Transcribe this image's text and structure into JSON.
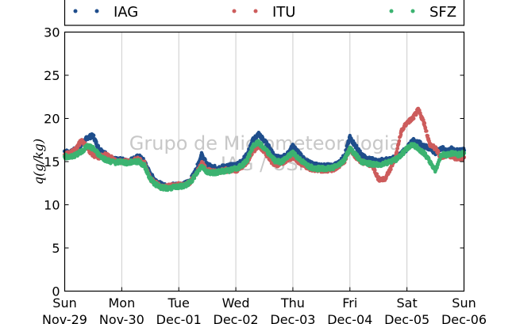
{
  "chart_data": {
    "type": "scatter",
    "title": "",
    "ylabel": "q(g/kg)",
    "xlabel": "",
    "ylim": [
      0,
      30
    ],
    "yticks": [
      0,
      5,
      10,
      15,
      20,
      25,
      30
    ],
    "xlim": [
      "2015-11-29 00:00",
      "2015-12-06 00:00"
    ],
    "xticks": [
      {
        "day": "Sun",
        "date": "Nov-29"
      },
      {
        "day": "Mon",
        "date": "Nov-30"
      },
      {
        "day": "Tue",
        "date": "Dec-01"
      },
      {
        "day": "Wed",
        "date": "Dec-02"
      },
      {
        "day": "Thu",
        "date": "Dec-03"
      },
      {
        "day": "Fri",
        "date": "Dec-04"
      },
      {
        "day": "Sat",
        "date": "Dec-05"
      },
      {
        "day": "Sun",
        "date": "Dec-06"
      }
    ],
    "grid": "vertical",
    "legend_position": "top",
    "watermark": [
      "Grupo de Micrometeorologia",
      "IAG / USP"
    ],
    "series": [
      {
        "name": "IAG",
        "color": "#1f4e8c",
        "x": [
          0,
          0.1,
          0.2,
          0.3,
          0.4,
          0.5,
          0.55,
          0.6,
          0.7,
          0.8,
          0.9,
          1.0,
          1.1,
          1.2,
          1.3,
          1.4,
          1.5,
          1.6,
          1.7,
          1.8,
          1.9,
          2.0,
          2.1,
          2.2,
          2.3,
          2.4,
          2.5,
          2.6,
          2.7,
          2.8,
          2.9,
          3.0,
          3.1,
          3.2,
          3.3,
          3.4,
          3.5,
          3.6,
          3.7,
          3.8,
          3.9,
          4.0,
          4.1,
          4.2,
          4.3,
          4.4,
          4.5,
          4.6,
          4.7,
          4.8,
          4.9,
          5.0,
          5.1,
          5.2,
          5.3,
          5.4,
          5.5,
          5.6,
          5.7,
          5.8,
          5.9,
          6.0,
          6.1,
          6.2,
          6.3,
          6.4,
          6.5,
          6.6,
          6.7,
          6.8,
          6.9,
          7.0
        ],
        "y": [
          16.2,
          16.0,
          16.5,
          17.0,
          17.8,
          18.0,
          17.2,
          16.5,
          16.0,
          15.3,
          15.2,
          15.2,
          15.0,
          15.3,
          15.6,
          15.0,
          13.5,
          12.8,
          12.3,
          12.1,
          12.3,
          12.3,
          12.4,
          12.8,
          14.0,
          15.8,
          14.6,
          14.3,
          14.3,
          14.4,
          14.5,
          14.6,
          15.0,
          15.8,
          17.5,
          18.2,
          17.4,
          16.5,
          15.5,
          15.4,
          15.8,
          16.8,
          16.0,
          15.2,
          14.8,
          14.6,
          14.5,
          14.5,
          14.5,
          14.8,
          15.6,
          17.8,
          16.8,
          15.8,
          15.3,
          15.2,
          15.0,
          15.2,
          15.2,
          15.5,
          16.0,
          16.5,
          17.5,
          17.2,
          16.8,
          16.5,
          16.0,
          16.6,
          16.2,
          16.5,
          16.2,
          16.3
        ]
      },
      {
        "name": "ITU",
        "color": "#cd5c5c",
        "x": [
          0,
          0.1,
          0.2,
          0.3,
          0.4,
          0.5,
          0.55,
          0.6,
          0.7,
          0.8,
          0.9,
          1.0,
          1.1,
          1.2,
          1.3,
          1.4,
          1.5,
          1.6,
          1.7,
          1.8,
          1.9,
          2.0,
          2.1,
          2.2,
          2.3,
          2.4,
          2.5,
          2.6,
          2.7,
          2.8,
          2.9,
          3.0,
          3.1,
          3.2,
          3.3,
          3.4,
          3.5,
          3.6,
          3.7,
          3.8,
          3.9,
          4.0,
          4.1,
          4.2,
          4.3,
          4.4,
          4.5,
          4.6,
          4.7,
          4.8,
          4.9,
          5.0,
          5.1,
          5.2,
          5.3,
          5.4,
          5.5,
          5.6,
          5.7,
          5.8,
          5.9,
          6.0,
          6.1,
          6.2,
          6.3,
          6.4,
          6.5,
          6.6,
          6.7,
          6.8,
          6.9,
          7.0
        ],
        "y": [
          15.8,
          16.0,
          16.5,
          17.5,
          16.5,
          15.8,
          15.6,
          15.5,
          15.8,
          15.5,
          15.0,
          15.0,
          15.0,
          15.1,
          15.3,
          14.8,
          13.0,
          12.5,
          12.0,
          12.1,
          12.2,
          12.3,
          12.3,
          12.6,
          13.5,
          14.8,
          14.0,
          13.8,
          13.8,
          14.0,
          14.0,
          14.0,
          14.3,
          15.0,
          16.2,
          16.8,
          16.2,
          15.2,
          14.6,
          14.8,
          15.2,
          15.5,
          15.0,
          14.5,
          14.2,
          14.1,
          14.0,
          14.0,
          14.1,
          14.5,
          15.0,
          16.5,
          15.6,
          15.0,
          14.8,
          14.5,
          13.0,
          12.9,
          14.0,
          15.5,
          18.5,
          19.5,
          20.0,
          21.0,
          19.5,
          17.0,
          16.5,
          15.5,
          15.8,
          15.5,
          15.4,
          15.5
        ]
      },
      {
        "name": "SFZ",
        "color": "#3cb371",
        "x": [
          0,
          0.1,
          0.2,
          0.3,
          0.4,
          0.5,
          0.55,
          0.6,
          0.7,
          0.8,
          0.9,
          1.0,
          1.1,
          1.2,
          1.3,
          1.4,
          1.5,
          1.6,
          1.7,
          1.8,
          1.9,
          2.0,
          2.1,
          2.2,
          2.3,
          2.4,
          2.5,
          2.6,
          2.7,
          2.8,
          2.9,
          3.0,
          3.1,
          3.2,
          3.3,
          3.4,
          3.5,
          3.6,
          3.7,
          3.8,
          3.9,
          4.0,
          4.1,
          4.2,
          4.3,
          4.4,
          4.5,
          4.6,
          4.7,
          4.8,
          4.9,
          5.0,
          5.1,
          5.2,
          5.3,
          5.4,
          5.5,
          5.6,
          5.7,
          5.8,
          5.9,
          6.0,
          6.1,
          6.2,
          6.3,
          6.4,
          6.5,
          6.6,
          6.7,
          6.8,
          6.9,
          7.0
        ],
        "y": [
          15.6,
          15.5,
          15.8,
          16.2,
          16.8,
          16.5,
          16.2,
          15.8,
          15.3,
          15.0,
          14.9,
          15.0,
          14.8,
          15.0,
          15.0,
          14.5,
          13.0,
          12.3,
          12.0,
          11.9,
          12.0,
          12.1,
          12.2,
          12.6,
          13.5,
          14.5,
          13.8,
          13.7,
          13.8,
          13.9,
          14.0,
          14.2,
          14.5,
          15.2,
          16.8,
          17.2,
          16.5,
          15.8,
          15.0,
          15.0,
          15.5,
          16.0,
          15.4,
          14.8,
          14.4,
          14.2,
          14.2,
          14.2,
          14.3,
          14.6,
          15.2,
          16.5,
          15.8,
          15.0,
          14.8,
          14.7,
          14.6,
          14.8,
          15.0,
          15.2,
          15.8,
          16.5,
          17.0,
          16.5,
          16.0,
          15.0,
          14.0,
          15.8,
          15.8,
          16.0,
          15.8,
          16.0
        ]
      }
    ]
  }
}
